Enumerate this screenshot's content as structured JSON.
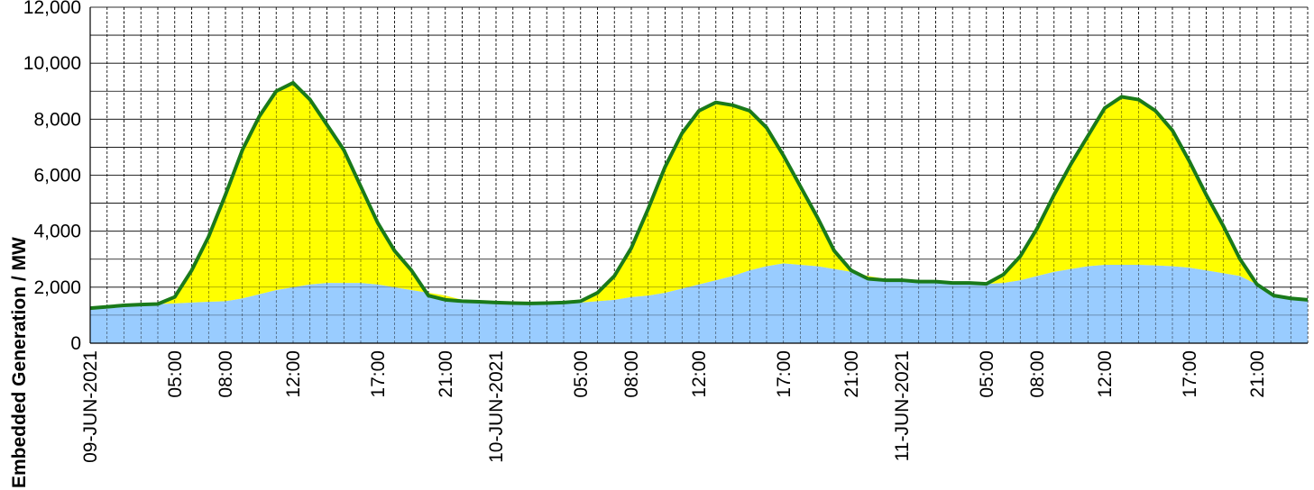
{
  "chart_data": {
    "type": "area",
    "ylabel": "Embedded Generation / MW",
    "ylim": [
      0,
      12000
    ],
    "y_ticks": [
      "0",
      "2,000",
      "4,000",
      "6,000",
      "8,000",
      "10,000",
      "12,000"
    ],
    "x_tick_labels": [
      {
        "label": "09-JUN-2021",
        "x": 0
      },
      {
        "label": "05:00",
        "x": 5
      },
      {
        "label": "08:00",
        "x": 8
      },
      {
        "label": "12:00",
        "x": 12
      },
      {
        "label": "17:00",
        "x": 17
      },
      {
        "label": "21:00",
        "x": 21
      },
      {
        "label": "10-JUN-2021",
        "x": 24
      },
      {
        "label": "05:00",
        "x": 29
      },
      {
        "label": "08:00",
        "x": 32
      },
      {
        "label": "12:00",
        "x": 36
      },
      {
        "label": "17:00",
        "x": 41
      },
      {
        "label": "21:00",
        "x": 45
      },
      {
        "label": "11-JUN-2021",
        "x": 48
      },
      {
        "label": "05:00",
        "x": 53
      },
      {
        "label": "08:00",
        "x": 56
      },
      {
        "label": "12:00",
        "x": 60
      },
      {
        "label": "17:00",
        "x": 65
      },
      {
        "label": "21:00",
        "x": 69
      }
    ],
    "x_range": [
      0,
      72
    ],
    "grid": true,
    "colors": {
      "wind": "#99ccff",
      "solar": "#ffff00",
      "total_line": "#1a7a1a"
    },
    "x": [
      0,
      1,
      2,
      3,
      4,
      5,
      6,
      7,
      8,
      9,
      10,
      11,
      12,
      13,
      14,
      15,
      16,
      17,
      18,
      19,
      20,
      21,
      22,
      23,
      24,
      25,
      26,
      27,
      28,
      29,
      30,
      31,
      32,
      33,
      34,
      35,
      36,
      37,
      38,
      39,
      40,
      41,
      42,
      43,
      44,
      45,
      46,
      47,
      48,
      49,
      50,
      51,
      52,
      53,
      54,
      55,
      56,
      57,
      58,
      59,
      60,
      61,
      62,
      63,
      64,
      65,
      66,
      67,
      68,
      69,
      70,
      71,
      72
    ],
    "series": [
      {
        "values": [
          1250,
          1300,
          1350,
          1380,
          1400,
          1420,
          1450,
          1480,
          1500,
          1600,
          1750,
          1900,
          2000,
          2100,
          2150,
          2150,
          2150,
          2100,
          2000,
          1900,
          1800,
          1700,
          1550,
          1500,
          1480,
          1450,
          1430,
          1420,
          1430,
          1450,
          1500,
          1550,
          1650,
          1700,
          1800,
          1950,
          2100,
          2250,
          2400,
          2600,
          2750,
          2850,
          2800,
          2750,
          2650,
          2550,
          2400,
          2300,
          2250,
          2200,
          2200,
          2150,
          2150,
          2120,
          2150,
          2250,
          2400,
          2550,
          2650,
          2750,
          2800,
          2800,
          2800,
          2780,
          2750,
          2700,
          2600,
          2500,
          2400,
          2100,
          1700,
          1600,
          1550
        ]
      },
      {
        "values": [
          1250,
          1300,
          1350,
          1380,
          1400,
          1650,
          2600,
          3800,
          5300,
          6900,
          8100,
          9000,
          9300,
          8700,
          7800,
          6900,
          5600,
          4300,
          3300,
          2600,
          1700,
          1550,
          1500,
          1480,
          1450,
          1430,
          1420,
          1430,
          1450,
          1500,
          1800,
          2400,
          3400,
          4800,
          6300,
          7500,
          8300,
          8600,
          8500,
          8300,
          7700,
          6700,
          5600,
          4500,
          3300,
          2600,
          2300,
          2250,
          2250,
          2200,
          2200,
          2150,
          2150,
          2120,
          2450,
          3100,
          4100,
          5300,
          6400,
          7400,
          8400,
          8800,
          8700,
          8300,
          7600,
          6500,
          5300,
          4200,
          3000,
          2100,
          1700,
          1600,
          1550
        ]
      }
    ]
  }
}
